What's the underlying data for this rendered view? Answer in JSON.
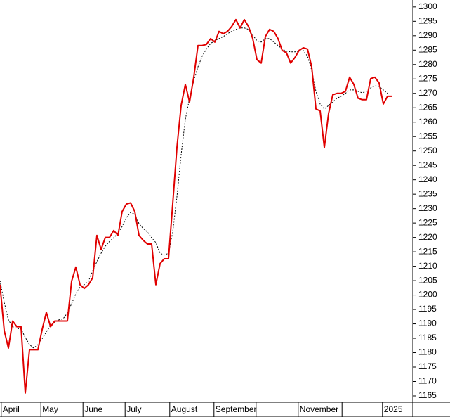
{
  "chart_data": {
    "type": "line",
    "x": [
      0,
      1,
      2,
      3,
      4,
      5,
      6,
      7,
      8,
      9,
      10,
      11,
      12,
      13,
      14,
      15,
      16,
      17,
      18,
      19,
      20,
      21,
      22,
      23,
      24,
      25,
      26,
      27,
      28,
      29,
      30,
      31,
      32,
      33,
      34,
      35,
      36,
      37,
      38,
      39,
      40,
      41,
      42,
      43,
      44,
      45,
      46,
      47,
      48,
      49,
      50,
      51,
      52,
      53,
      54,
      55,
      56,
      57,
      58,
      59,
      60,
      61,
      62,
      63,
      64,
      65,
      66,
      67,
      68,
      69,
      70,
      71,
      72,
      73,
      74,
      75,
      76,
      77,
      78,
      79,
      80,
      81,
      82,
      83,
      84,
      85,
      86,
      87,
      88,
      89,
      90,
      91,
      92,
      93
    ],
    "xlim": [
      0,
      98
    ],
    "xticks": [
      {
        "value": 0.3,
        "label": "April"
      },
      {
        "value": 9.7,
        "label": "May"
      },
      {
        "value": 19.7,
        "label": "June"
      },
      {
        "value": 29.7,
        "label": "July"
      },
      {
        "value": 40.3,
        "label": "August"
      },
      {
        "value": 50.8,
        "label": "September"
      },
      {
        "value": 60.8,
        "label": null
      },
      {
        "value": 70.8,
        "label": "November"
      },
      {
        "value": 81.2,
        "label": null
      },
      {
        "value": 90.8,
        "label": "2025"
      }
    ],
    "ylim": [
      1162.8,
      1302.4
    ],
    "yticks": [
      1165,
      1170,
      1175,
      1180,
      1185,
      1190,
      1195,
      1200,
      1205,
      1210,
      1215,
      1220,
      1225,
      1230,
      1235,
      1240,
      1245,
      1250,
      1255,
      1260,
      1265,
      1270,
      1275,
      1280,
      1285,
      1290,
      1295,
      1300
    ],
    "series": [
      {
        "color": "#e00000",
        "dashed": false,
        "values": [
          1203.6,
          1187.7,
          1181.6,
          1191,
          1189,
          1189,
          1166,
          1181,
          1181,
          1181,
          1188,
          1194,
          1189,
          1191,
          1191,
          1191,
          1191,
          1204.8,
          1209.7,
          1203.6,
          1202.3,
          1203.6,
          1206,
          1220.7,
          1215.8,
          1220,
          1220,
          1222.4,
          1220.7,
          1229,
          1231.6,
          1232,
          1229,
          1220.7,
          1219,
          1217.7,
          1217.7,
          1203.6,
          1210.9,
          1212.6,
          1212.6,
          1231.6,
          1251.2,
          1265.8,
          1273.1,
          1267,
          1275.6,
          1286.6,
          1286.6,
          1287,
          1289,
          1287.8,
          1291.5,
          1290.7,
          1291.5,
          1293.2,
          1295.6,
          1292.7,
          1295.6,
          1293.2,
          1289,
          1281.7,
          1280.5,
          1289.7,
          1292.2,
          1291.5,
          1289,
          1284.9,
          1284.1,
          1280.5,
          1282.4,
          1284.9,
          1285.8,
          1285.4,
          1279.2,
          1264.6,
          1263.9,
          1251.2,
          1263,
          1269.5,
          1270,
          1270,
          1270.7,
          1275.6,
          1273.1,
          1268.3,
          1267.8,
          1267.8,
          1275.1,
          1275.6,
          1273.6,
          1266.3,
          1269,
          1269
        ]
      },
      {
        "color": "#000000",
        "dashed": true,
        "values": [
          1205,
          1197.5,
          1191.4,
          1189,
          1188.4,
          1188.2,
          1185.3,
          1182.8,
          1181.6,
          1182.8,
          1184.8,
          1187.2,
          1189.4,
          1190.6,
          1191.4,
          1191.8,
          1193.8,
          1197,
          1200.4,
          1202.8,
          1203.6,
          1204.8,
          1208.4,
          1211.6,
          1214.5,
          1217,
          1218.6,
          1219.9,
          1221.4,
          1223.8,
          1226.8,
          1228.7,
          1228,
          1224.8,
          1223.1,
          1221.9,
          1219.9,
          1218.2,
          1214.5,
          1213.9,
          1214.5,
          1221.9,
          1234.1,
          1248.7,
          1261,
          1268.3,
          1274.4,
          1279.2,
          1282.9,
          1285.4,
          1287.3,
          1288.3,
          1289,
          1289.7,
          1290.7,
          1291.5,
          1292.2,
          1292.7,
          1292.7,
          1292.2,
          1290.2,
          1288.3,
          1287.8,
          1289,
          1289,
          1287.8,
          1286.6,
          1285.4,
          1284.6,
          1284.4,
          1284.4,
          1284.6,
          1284.9,
          1282.9,
          1278,
          1270.7,
          1266.3,
          1264.6,
          1265.8,
          1267,
          1268.3,
          1269,
          1270,
          1271.2,
          1271.2,
          1270.7,
          1270.2,
          1270.7,
          1271.9,
          1272.6,
          1272.4,
          1271.2,
          1270,
          null
        ]
      }
    ]
  }
}
